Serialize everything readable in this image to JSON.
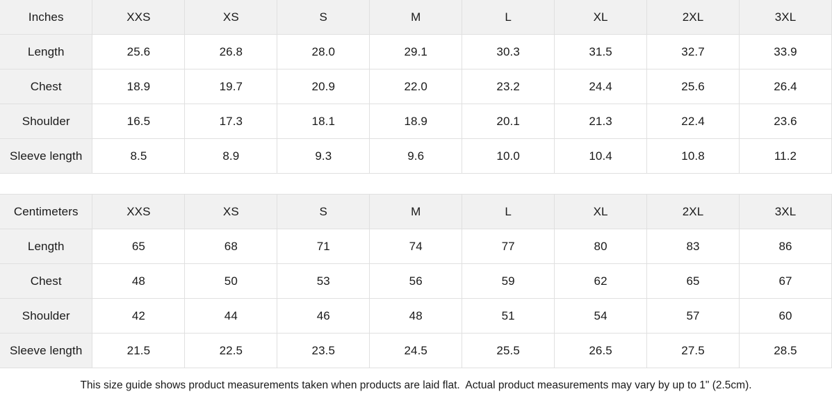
{
  "colors": {
    "header_bg": "#f1f1f1",
    "cell_bg": "#ffffff",
    "border": "#e0e0e0",
    "text": "#1a1a1a"
  },
  "tables": [
    {
      "unit_label": "Inches",
      "sizes": [
        "XXS",
        "XS",
        "S",
        "M",
        "L",
        "XL",
        "2XL",
        "3XL"
      ],
      "rows": [
        {
          "label": "Length",
          "values": [
            "25.6",
            "26.8",
            "28.0",
            "29.1",
            "30.3",
            "31.5",
            "32.7",
            "33.9"
          ]
        },
        {
          "label": "Chest",
          "values": [
            "18.9",
            "19.7",
            "20.9",
            "22.0",
            "23.2",
            "24.4",
            "25.6",
            "26.4"
          ]
        },
        {
          "label": "Shoulder",
          "values": [
            "16.5",
            "17.3",
            "18.1",
            "18.9",
            "20.1",
            "21.3",
            "22.4",
            "23.6"
          ]
        },
        {
          "label": "Sleeve length",
          "values": [
            "8.5",
            "8.9",
            "9.3",
            "9.6",
            "10.0",
            "10.4",
            "10.8",
            "11.2"
          ]
        }
      ]
    },
    {
      "unit_label": "Centimeters",
      "sizes": [
        "XXS",
        "XS",
        "S",
        "M",
        "L",
        "XL",
        "2XL",
        "3XL"
      ],
      "rows": [
        {
          "label": "Length",
          "values": [
            "65",
            "68",
            "71",
            "74",
            "77",
            "80",
            "83",
            "86"
          ]
        },
        {
          "label": "Chest",
          "values": [
            "48",
            "50",
            "53",
            "56",
            "59",
            "62",
            "65",
            "67"
          ]
        },
        {
          "label": "Shoulder",
          "values": [
            "42",
            "44",
            "46",
            "48",
            "51",
            "54",
            "57",
            "60"
          ]
        },
        {
          "label": "Sleeve length",
          "values": [
            "21.5",
            "22.5",
            "23.5",
            "24.5",
            "25.5",
            "26.5",
            "27.5",
            "28.5"
          ]
        }
      ]
    }
  ],
  "footnote": "This size guide shows product measurements taken when products are laid flat.  Actual product measurements may vary by up to 1\" (2.5cm)."
}
